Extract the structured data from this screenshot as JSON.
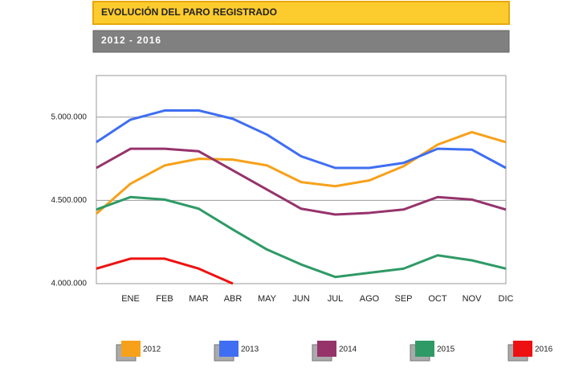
{
  "chart_data": {
    "type": "line",
    "title": "EVOLUCIÓN DEL PARO REGISTRADO",
    "subtitle": "2012 - 2016",
    "categories": [
      null,
      "ENE",
      "FEB",
      "MAR",
      "ABR",
      "MAY",
      "JUN",
      "JUL",
      "AGO",
      "SEP",
      "OCT",
      "NOV",
      "DIC"
    ],
    "series": [
      {
        "name": "2012",
        "color": "#f7a11a",
        "values": [
          4420000,
          4600000,
          4710000,
          4750000,
          4745000,
          4710000,
          4610000,
          4585000,
          4620000,
          4705000,
          4835000,
          4910000,
          4850000
        ]
      },
      {
        "name": "2013",
        "color": "#3f6ef2",
        "values": [
          4850000,
          4985000,
          5040000,
          5040000,
          4990000,
          4895000,
          4765000,
          4695000,
          4695000,
          4725000,
          4810000,
          4805000,
          4695000
        ]
      },
      {
        "name": "2014",
        "color": "#96336b",
        "values": [
          4695000,
          4810000,
          4810000,
          4795000,
          4680000,
          4565000,
          4450000,
          4415000,
          4425000,
          4445000,
          4520000,
          4505000,
          4445000
        ]
      },
      {
        "name": "2015",
        "color": "#2f9a66",
        "values": [
          4445000,
          4520000,
          4505000,
          4450000,
          4325000,
          4205000,
          4115000,
          4040000,
          4065000,
          4090000,
          4170000,
          4140000,
          4090000
        ]
      },
      {
        "name": "2016",
        "color": "#ee1111",
        "values": [
          4090000,
          4150000,
          4150000,
          4090000,
          4000000,
          null,
          null,
          null,
          null,
          null,
          null,
          null,
          null
        ]
      }
    ],
    "ylim": [
      4000000,
      5250000
    ],
    "yticks": [
      {
        "value": 4000000,
        "label": "4.000.000"
      },
      {
        "value": 4500000,
        "label": "4.500.000"
      },
      {
        "value": 5000000,
        "label": "5.000.000"
      }
    ],
    "grid": true,
    "legend": "bottom"
  }
}
